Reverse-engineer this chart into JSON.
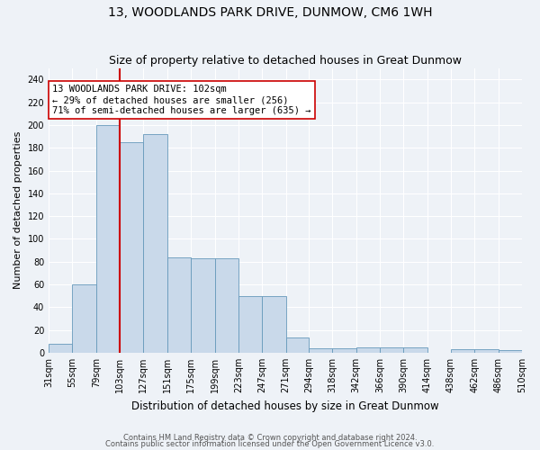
{
  "title": "13, WOODLANDS PARK DRIVE, DUNMOW, CM6 1WH",
  "subtitle": "Size of property relative to detached houses in Great Dunmow",
  "xlabel": "Distribution of detached houses by size in Great Dunmow",
  "ylabel": "Number of detached properties",
  "bar_labels": [
    "31sqm",
    "55sqm",
    "79sqm",
    "103sqm",
    "127sqm",
    "151sqm",
    "175sqm",
    "199sqm",
    "223sqm",
    "247sqm",
    "271sqm",
    "294sqm",
    "318sqm",
    "342sqm",
    "366sqm",
    "390sqm",
    "414sqm",
    "438sqm",
    "462sqm",
    "486sqm",
    "510sqm"
  ],
  "bar_heights": [
    8,
    60,
    200,
    185,
    192,
    84,
    83,
    83,
    50,
    50,
    13,
    4,
    4,
    5,
    5,
    5,
    0,
    3,
    3,
    2
  ],
  "tick_edges": [
    31,
    55,
    79,
    103,
    127,
    151,
    175,
    199,
    223,
    247,
    271,
    294,
    318,
    342,
    366,
    390,
    414,
    438,
    462,
    486,
    510
  ],
  "bar_color": "#c9d9ea",
  "bar_edge_color": "#6699bb",
  "red_line_x": 103,
  "annotation_text": "13 WOODLANDS PARK DRIVE: 102sqm\n← 29% of detached houses are smaller (256)\n71% of semi-detached houses are larger (635) →",
  "yticks": [
    0,
    20,
    40,
    60,
    80,
    100,
    120,
    140,
    160,
    180,
    200,
    220,
    240
  ],
  "ylim": [
    0,
    250
  ],
  "footer1": "Contains HM Land Registry data © Crown copyright and database right 2024.",
  "footer2": "Contains public sector information licensed under the Open Government Licence v3.0.",
  "bg_color": "#eef2f7",
  "grid_color": "#ffffff",
  "title_fontsize": 10,
  "subtitle_fontsize": 9,
  "ylabel_fontsize": 8,
  "xlabel_fontsize": 8.5,
  "tick_fontsize": 7,
  "annotation_fontsize": 7.5,
  "footer_fontsize": 6
}
